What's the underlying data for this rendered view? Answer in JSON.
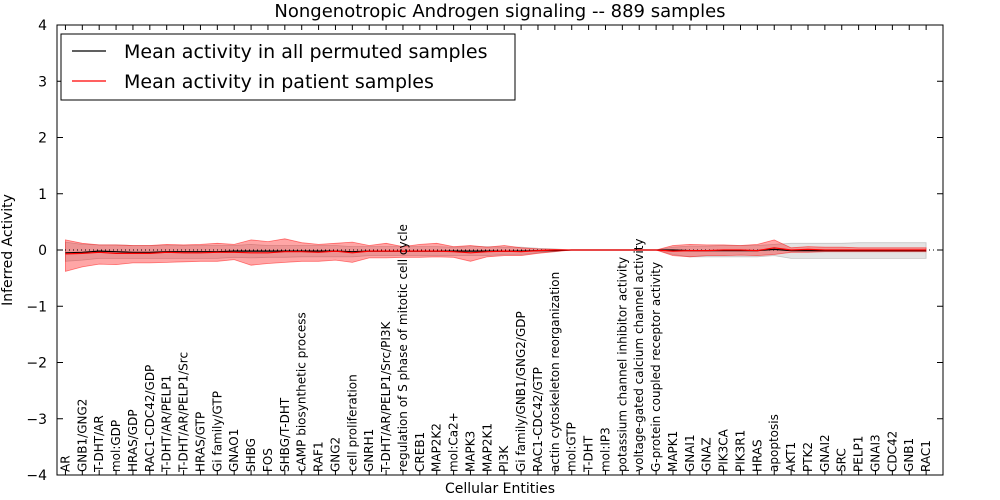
{
  "chart_data": {
    "type": "line",
    "title": "Nongenotropic Androgen signaling -- 889 samples",
    "xlabel": "Cellular Entities",
    "ylabel": "Inferred Activity",
    "ylim": [
      -4,
      4
    ],
    "yticks": [
      -4,
      -3,
      -2,
      -1,
      0,
      1,
      2,
      3,
      4
    ],
    "ytick_labels": [
      "−4",
      "−3",
      "−2",
      "−1",
      "0",
      "1",
      "2",
      "3",
      "4"
    ],
    "legend_position": "top-left",
    "categories": [
      "AR",
      "GNB1/GNG2",
      "T-DHT/AR",
      "mol:GDP",
      "HRAS/GDP",
      "RAC1-CDC42/GDP",
      "T-DHT/AR/PELP1",
      "T-DHT/AR/PELP1/Src",
      "HRAS/GTP",
      "Gi family/GTP",
      "GNAO1",
      "SHBG",
      "FOS",
      "SHBG/T-DHT",
      "cAMP biosynthetic process",
      "RAF1",
      "GNG2",
      "cell proliferation",
      "GNRH1",
      "T-DHT/AR/PELP1/Src/PI3K",
      "regulation of S phase of mitotic cell cycle",
      "CREB1",
      "MAP2K2",
      "mol:Ca2+",
      "MAPK3",
      "MAP2K1",
      "PI3K",
      "Gi family/GNB1/GNG2/GDP",
      "RAC1-CDC42/GTP",
      "actin cytoskeleton reorganization",
      "mol:GTP",
      "T-DHT",
      "mol:IP3",
      "potassium channel inhibitor activity",
      "voltage-gated calcium channel activity",
      "G-protein coupled receptor activity",
      "MAPK1",
      "GNAI1",
      "GNAZ",
      "PIK3CA",
      "PIK3R1",
      "HRAS",
      "apoptosis",
      "AKT1",
      "PTK2",
      "GNAI2",
      "SRC",
      "PELP1",
      "GNAI3",
      "CDC42",
      "GNB1",
      "RAC1"
    ],
    "series": [
      {
        "name": "Mean activity in all permuted samples",
        "color": "#000000",
        "values": [
          -0.05,
          -0.04,
          -0.02,
          -0.03,
          -0.04,
          -0.04,
          -0.03,
          -0.03,
          -0.03,
          -0.03,
          -0.02,
          -0.02,
          -0.02,
          -0.02,
          -0.02,
          -0.02,
          -0.02,
          -0.03,
          -0.02,
          -0.02,
          -0.02,
          -0.02,
          -0.02,
          -0.02,
          -0.02,
          -0.02,
          -0.02,
          -0.02,
          -0.01,
          -0.01,
          0,
          0,
          0,
          0,
          0,
          0,
          0,
          -0.01,
          -0.01,
          -0.01,
          -0.01,
          -0.01,
          0.01,
          -0.01,
          -0.01,
          -0.01,
          -0.01,
          -0.01,
          -0.01,
          -0.01,
          -0.01,
          -0.01
        ],
        "band_upper": [
          0.14,
          0.1,
          0.09,
          0.09,
          0.08,
          0.08,
          0.08,
          0.08,
          0.08,
          0.08,
          0.08,
          0.1,
          0.08,
          0.08,
          0.08,
          0.08,
          0.08,
          0.06,
          0.06,
          0.06,
          0.06,
          0.06,
          0.06,
          0.05,
          0.06,
          0.06,
          0.05,
          0.05,
          0.03,
          0.02,
          0,
          0,
          0,
          0,
          0,
          0,
          0.05,
          0.07,
          0.07,
          0.08,
          0.08,
          0.08,
          0.1,
          0.12,
          0.12,
          0.12,
          0.12,
          0.13,
          0.13,
          0.13,
          0.13,
          0.13
        ],
        "band_lower": [
          -0.2,
          -0.18,
          -0.15,
          -0.15,
          -0.15,
          -0.15,
          -0.15,
          -0.15,
          -0.15,
          -0.15,
          -0.13,
          -0.14,
          -0.13,
          -0.13,
          -0.12,
          -0.12,
          -0.12,
          -0.12,
          -0.1,
          -0.1,
          -0.1,
          -0.1,
          -0.1,
          -0.1,
          -0.1,
          -0.1,
          -0.08,
          -0.08,
          -0.05,
          -0.02,
          0,
          0,
          0,
          0,
          0,
          0,
          -0.08,
          -0.12,
          -0.12,
          -0.12,
          -0.12,
          -0.12,
          -0.1,
          -0.15,
          -0.15,
          -0.15,
          -0.15,
          -0.15,
          -0.15,
          -0.15,
          -0.15,
          -0.15
        ]
      },
      {
        "name": "Mean activity in patient samples",
        "color": "#ff0000",
        "values": [
          -0.07,
          -0.06,
          -0.04,
          -0.06,
          -0.06,
          -0.06,
          -0.04,
          -0.05,
          -0.05,
          -0.04,
          -0.04,
          -0.05,
          -0.05,
          -0.03,
          -0.03,
          -0.04,
          -0.02,
          -0.05,
          -0.02,
          -0.02,
          -0.02,
          -0.02,
          -0.02,
          -0.03,
          -0.05,
          -0.03,
          -0.02,
          -0.03,
          -0.01,
          0,
          0,
          0,
          0,
          0,
          0,
          0,
          -0.02,
          -0.01,
          -0.01,
          0,
          0,
          -0.01,
          0.04,
          0,
          0.01,
          0,
          0,
          0,
          0,
          0,
          0,
          0
        ],
        "band_upper": [
          0.18,
          0.12,
          0.09,
          0.09,
          0.08,
          0.08,
          0.1,
          0.09,
          0.1,
          0.12,
          0.1,
          0.18,
          0.15,
          0.2,
          0.13,
          0.1,
          0.12,
          0.14,
          0.08,
          0.12,
          0.06,
          0.1,
          0.12,
          0.06,
          0.08,
          0.05,
          0.08,
          0.04,
          0.02,
          0.01,
          0,
          0,
          0,
          0,
          0,
          0,
          0.08,
          0.1,
          0.09,
          0.09,
          0.08,
          0.1,
          0.18,
          0.04,
          0.06,
          0.05,
          0.05,
          0.04,
          0.04,
          0.04,
          0.04,
          0.04
        ],
        "band_lower": [
          -0.38,
          -0.3,
          -0.25,
          -0.26,
          -0.23,
          -0.23,
          -0.22,
          -0.21,
          -0.2,
          -0.2,
          -0.17,
          -0.27,
          -0.24,
          -0.22,
          -0.2,
          -0.2,
          -0.18,
          -0.22,
          -0.14,
          -0.14,
          -0.13,
          -0.13,
          -0.12,
          -0.13,
          -0.2,
          -0.12,
          -0.1,
          -0.1,
          -0.06,
          -0.03,
          0,
          0,
          0,
          0,
          0,
          0,
          -0.1,
          -0.12,
          -0.1,
          -0.1,
          -0.09,
          -0.1,
          -0.08,
          -0.04,
          -0.04,
          -0.03,
          -0.03,
          -0.03,
          -0.03,
          -0.03,
          -0.03,
          -0.03
        ]
      }
    ],
    "reference_line": 0
  }
}
